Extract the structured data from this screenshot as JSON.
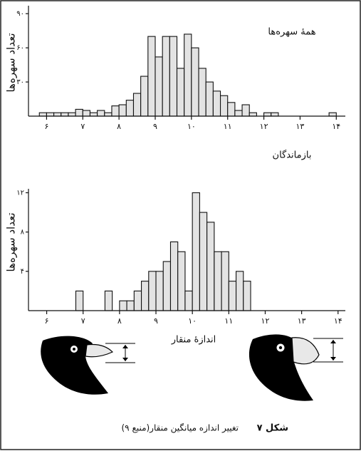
{
  "chart_data": [
    {
      "type": "histogram",
      "title": "همهٔ سهره‌ها",
      "ylabel": "تعداد سهره‌ها",
      "bins": [
        5.8,
        6.0,
        6.2,
        6.4,
        6.6,
        6.8,
        7.0,
        7.2,
        7.4,
        7.6,
        7.8,
        8.0,
        8.2,
        8.4,
        8.6,
        8.8,
        9.0,
        9.2,
        9.4,
        9.6,
        9.8,
        10.0,
        10.2,
        10.4,
        10.6,
        10.8,
        11.0,
        11.2,
        11.4,
        11.6,
        11.8,
        12.0,
        12.2,
        12.4,
        12.6,
        12.8,
        13.0,
        13.2,
        13.4,
        13.6,
        13.8,
        14.0
      ],
      "values": [
        3,
        3,
        3,
        3,
        3,
        6,
        5,
        3,
        5,
        3,
        9,
        10,
        14,
        20,
        35,
        70,
        52,
        70,
        70,
        42,
        72,
        60,
        42,
        30,
        22,
        18,
        12,
        5,
        10,
        3,
        0,
        3,
        3,
        0,
        0,
        0,
        0,
        0,
        0,
        0,
        3
      ],
      "color": "#e3e3e3",
      "xlim": [
        5.5,
        14.25
      ],
      "ylim": [
        0,
        97
      ],
      "xticks": [
        {
          "value": 6,
          "label": "۶"
        },
        {
          "value": 7,
          "label": "۷"
        },
        {
          "value": 8,
          "label": "۸"
        },
        {
          "value": 9,
          "label": "۹"
        },
        {
          "value": 10,
          "label": "۱۰"
        },
        {
          "value": 11,
          "label": "۱۱"
        },
        {
          "value": 12,
          "label": "۱۲"
        },
        {
          "value": 13,
          "label": "۱۳"
        },
        {
          "value": 14,
          "label": "۱۴"
        }
      ],
      "yticks": [
        {
          "value": 30,
          "label": "۳۰"
        },
        {
          "value": 60,
          "label": "۶۰"
        },
        {
          "value": 90,
          "label": "۹۰"
        }
      ]
    },
    {
      "type": "histogram",
      "title": "بازماندگان",
      "ylabel": "تعداد سهره‌ها",
      "xlabel": "اندازهٔ منقار",
      "bins": [
        6.8,
        7.0,
        7.2,
        7.4,
        7.6,
        7.8,
        8.0,
        8.2,
        8.4,
        8.6,
        8.8,
        9.0,
        9.2,
        9.4,
        9.6,
        9.8,
        10.0,
        10.2,
        10.4,
        10.6,
        10.8,
        11.0,
        11.2,
        11.4,
        11.6
      ],
      "values": [
        2,
        0,
        0,
        0,
        2,
        0,
        1,
        1,
        2,
        3,
        4,
        4,
        5,
        7,
        6,
        2,
        12,
        10,
        9,
        6,
        6,
        3,
        4,
        3
      ],
      "color": "#e3e3e3",
      "xlim": [
        5.5,
        14.2
      ],
      "ylim": [
        0,
        12.4
      ],
      "xticks": [
        {
          "value": 6,
          "label": "۶"
        },
        {
          "value": 7,
          "label": "۷"
        },
        {
          "value": 8,
          "label": "۸"
        },
        {
          "value": 9,
          "label": "۹"
        },
        {
          "value": 10,
          "label": "۱۰"
        },
        {
          "value": 11,
          "label": "۱۱"
        },
        {
          "value": 12,
          "label": "۱۲"
        },
        {
          "value": 13,
          "label": "۱۳"
        },
        {
          "value": 14,
          "label": "۱۴"
        }
      ],
      "yticks": [
        {
          "value": 4,
          "label": "۴"
        },
        {
          "value": 8,
          "label": "۸"
        },
        {
          "value": 12,
          "label": "۱۲"
        }
      ]
    }
  ],
  "figure_label": "شکل ۷",
  "figure_caption": "تغییر اندازه میانگین منقار(منبع ۹)"
}
